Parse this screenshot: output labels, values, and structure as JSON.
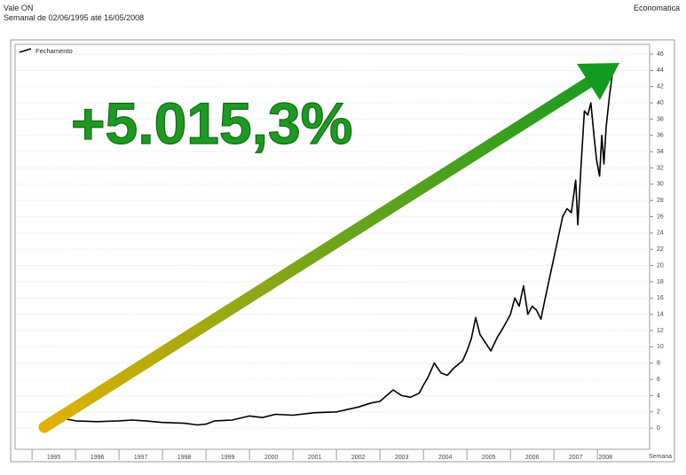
{
  "chart_data": {
    "type": "line",
    "title": "Vale ON",
    "subtitle": "Semanal de 02/06/1995 até 16/05/2008",
    "source": "Economatica",
    "annotation": "+5.015,3%",
    "x_label": "Semana",
    "x": [
      1995.42,
      1995.6,
      1995.8,
      1996.0,
      1996.5,
      1997.0,
      1997.3,
      1997.6,
      1998.0,
      1998.5,
      1998.8,
      1999.0,
      1999.2,
      1999.6,
      2000.0,
      2000.3,
      2000.6,
      2001.0,
      2001.5,
      2002.0,
      2002.5,
      2002.8,
      2003.0,
      2003.3,
      2003.5,
      2003.7,
      2003.9,
      2004.0,
      2004.1,
      2004.25,
      2004.4,
      2004.55,
      2004.7,
      2004.9,
      2005.0,
      2005.1,
      2005.2,
      2005.3,
      2005.45,
      2005.55,
      2005.7,
      2005.85,
      2006.0,
      2006.1,
      2006.2,
      2006.3,
      2006.4,
      2006.5,
      2006.6,
      2006.7,
      2006.8,
      2006.9,
      2007.0,
      2007.1,
      2007.2,
      2007.3,
      2007.4,
      2007.5,
      2007.55,
      2007.62,
      2007.7,
      2007.78,
      2007.85,
      2007.92,
      2007.98,
      2008.05,
      2008.1,
      2008.15,
      2008.2,
      2008.28,
      2008.33,
      2008.37
    ],
    "series": [
      {
        "name": "Fechamento",
        "color": "#000000",
        "values": [
          0.9,
          1.0,
          1.1,
          0.9,
          0.8,
          0.9,
          1.0,
          0.9,
          0.7,
          0.6,
          0.4,
          0.5,
          0.9,
          1.0,
          1.5,
          1.3,
          1.7,
          1.6,
          1.9,
          2.0,
          2.6,
          3.1,
          3.3,
          4.7,
          4.0,
          3.8,
          4.3,
          5.3,
          6.2,
          8.0,
          6.8,
          6.5,
          7.4,
          8.3,
          9.5,
          11.0,
          13.6,
          11.5,
          10.3,
          9.5,
          11.2,
          12.5,
          14.0,
          16.0,
          15.0,
          17.5,
          14.0,
          15.0,
          14.5,
          13.4,
          16.0,
          18.5,
          21.0,
          23.5,
          26.0,
          27.0,
          26.5,
          30.5,
          25.0,
          32.0,
          39.0,
          38.5,
          40.0,
          36.0,
          33.0,
          31.0,
          36.0,
          32.5,
          37.0,
          41.0,
          43.0,
          44.6
        ]
      }
    ],
    "xlim": [
      1994.61,
      2009.2
    ],
    "xticks": [
      1995,
      1996,
      1997,
      1998,
      1999,
      2000,
      2001,
      2002,
      2003,
      2004,
      2005,
      2006,
      2007,
      2008
    ],
    "ylim": [
      -2.6,
      47.2
    ],
    "yticks": [
      0,
      2,
      4,
      6,
      8,
      10,
      12,
      14,
      16,
      18,
      20,
      22,
      24,
      26,
      28,
      30,
      32,
      34,
      36,
      38,
      40,
      42,
      44,
      46
    ],
    "grid": true
  }
}
